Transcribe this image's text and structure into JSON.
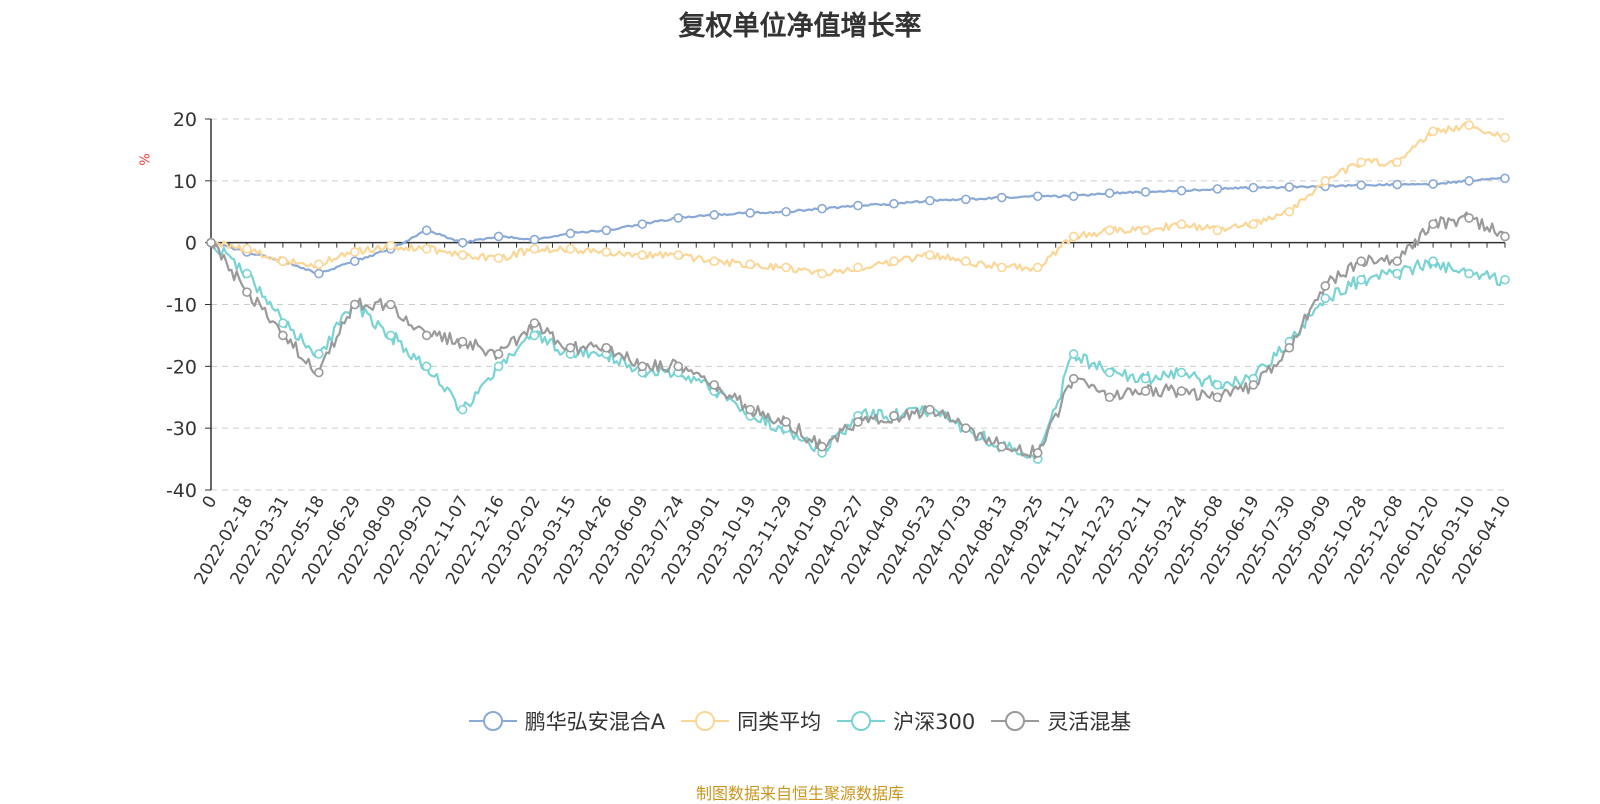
{
  "chart_data": {
    "type": "line",
    "title": "复权单位净值增长率",
    "ylabel": "%",
    "ylim": [
      -40,
      20
    ],
    "yticks": [
      20,
      10,
      0,
      -10,
      -20,
      -30,
      -40
    ],
    "categories": [
      "0",
      "2022-02-18",
      "2022-03-31",
      "2022-05-18",
      "2022-06-29",
      "2022-08-09",
      "2022-09-20",
      "2022-11-07",
      "2022-12-16",
      "2023-02-02",
      "2023-03-15",
      "2023-04-26",
      "2023-06-09",
      "2023-07-24",
      "2023-09-01",
      "2023-10-19",
      "2023-11-29",
      "2024-01-09",
      "2024-02-27",
      "2024-04-09",
      "2024-05-23",
      "2024-07-03",
      "2024-08-13",
      "2024-09-25",
      "2024-11-12",
      "2024-12-23",
      "2025-02-11",
      "2025-03-24",
      "2025-05-08",
      "2025-06-19",
      "2025-07-30",
      "2025-09-09",
      "2025-10-28",
      "2025-12-08",
      "2026-01-20",
      "2026-03-10",
      "2026-04-10"
    ],
    "series": [
      {
        "name": "鹏华弘安混合A",
        "color": "#8aa9d6",
        "values": [
          0,
          -1.5,
          -3,
          -5,
          -3,
          -1,
          2,
          0,
          1,
          0.5,
          1.5,
          2,
          3,
          4,
          4.5,
          4.8,
          5,
          5.5,
          6,
          6.3,
          6.8,
          7,
          7.3,
          7.5,
          7.5,
          8,
          8.2,
          8.4,
          8.7,
          8.9,
          9,
          9.1,
          9.3,
          9.4,
          9.5,
          10,
          10.4
        ]
      },
      {
        "name": "同类平均",
        "color": "#fbd696",
        "values": [
          0,
          -1,
          -3,
          -3.5,
          -1.5,
          -0.5,
          -1,
          -2,
          -2.5,
          -1,
          -1,
          -1.5,
          -2,
          -2,
          -3,
          -3.5,
          -4,
          -5,
          -4,
          -3,
          -2,
          -3,
          -4,
          -4,
          1,
          2,
          2,
          3,
          2,
          3,
          5,
          10,
          13,
          13,
          18,
          19,
          17
        ]
      },
      {
        "name": "沪深300",
        "color": "#7ad3d3",
        "values": [
          0,
          -5,
          -13,
          -18,
          -10,
          -15,
          -20,
          -27,
          -20,
          -15,
          -18,
          -18,
          -21,
          -21,
          -24,
          -28,
          -30,
          -34,
          -28,
          -28,
          -27,
          -30,
          -33,
          -35,
          -18,
          -21,
          -22,
          -21,
          -23,
          -22,
          -16,
          -9,
          -6,
          -5,
          -3,
          -5,
          -6
        ]
      },
      {
        "name": "灵活混基",
        "color": "#9a9a9a",
        "values": [
          0,
          -8,
          -15,
          -21,
          -10,
          -10,
          -15,
          -16,
          -18,
          -13,
          -17,
          -17,
          -20,
          -20,
          -23,
          -27,
          -29,
          -33,
          -29,
          -28,
          -27,
          -30,
          -33,
          -34,
          -22,
          -25,
          -24,
          -24,
          -25,
          -23,
          -17,
          -7,
          -3,
          -3,
          3,
          4,
          1
        ]
      }
    ]
  },
  "source_text": "制图数据来自恒生聚源数据库"
}
